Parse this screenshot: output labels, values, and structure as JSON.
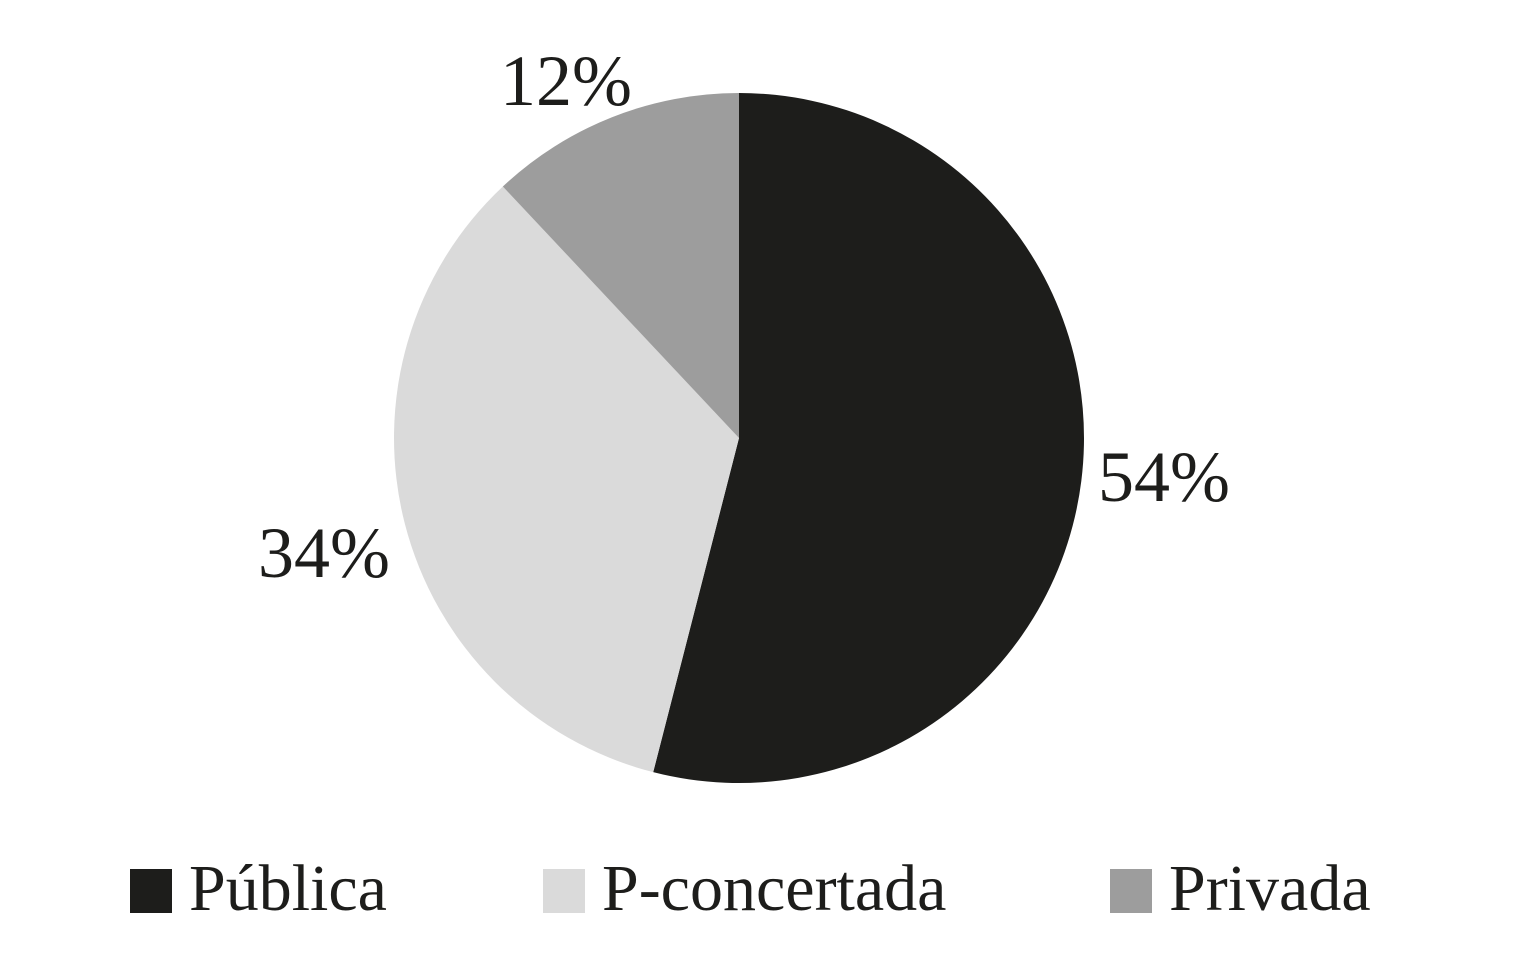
{
  "chart_data": {
    "type": "pie",
    "direction": "clockwise",
    "start_angle_deg": 0,
    "legend_position": "bottom",
    "grid": false,
    "segments": [
      {
        "label": "Pública",
        "value": 54,
        "pct_label": "54%",
        "color": "#1d1d1b"
      },
      {
        "label": "P-concertada",
        "value": 34,
        "pct_label": "34%",
        "color": "#dadada"
      },
      {
        "label": "Privada",
        "value": 12,
        "pct_label": "12%",
        "color": "#9d9d9d"
      }
    ]
  },
  "canvas": {
    "background": "#ffffff"
  }
}
